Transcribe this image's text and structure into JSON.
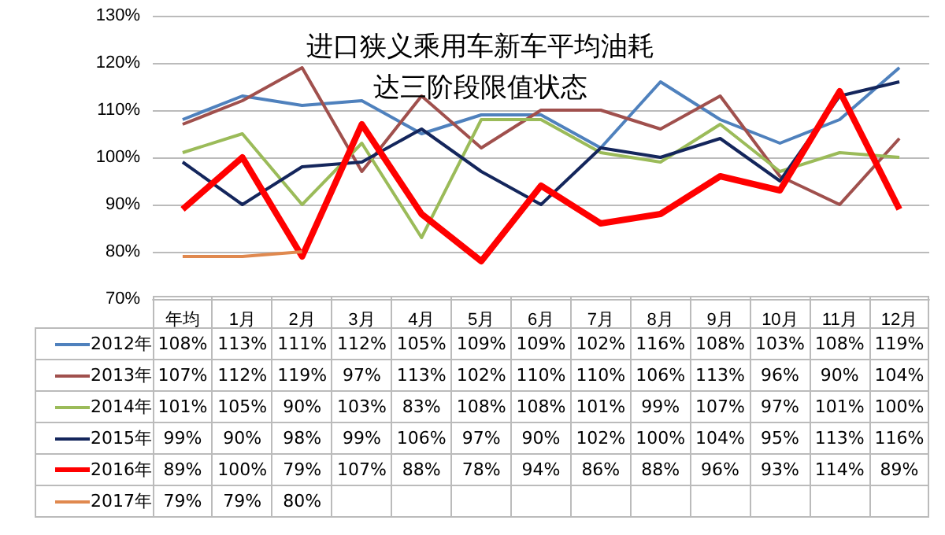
{
  "chart_data": {
    "type": "line",
    "title": "进口狭义乘用车新车平均油耗达三阶段限值状态",
    "categories": [
      "年均",
      "1月",
      "2月",
      "3月",
      "4月",
      "5月",
      "6月",
      "7月",
      "8月",
      "9月",
      "10月",
      "11月",
      "12月"
    ],
    "series": [
      {
        "name": "2012年",
        "color": "#4f81bd",
        "values": [
          108,
          113,
          111,
          112,
          105,
          109,
          109,
          102,
          116,
          108,
          103,
          108,
          119
        ],
        "value_labels": [
          "108%",
          "113%",
          "111%",
          "112%",
          "105%",
          "109%",
          "109%",
          "102%",
          "116%",
          "108%",
          "103%",
          "108%",
          "119%"
        ]
      },
      {
        "name": "2013年",
        "color": "#a0504d",
        "values": [
          107,
          112,
          119,
          97,
          113,
          102,
          110,
          110,
          106,
          113,
          96,
          90,
          104
        ],
        "value_labels": [
          "107%",
          "112%",
          "119%",
          "97%",
          "113%",
          "102%",
          "110%",
          "110%",
          "106%",
          "113%",
          "96%",
          "90%",
          "104%"
        ]
      },
      {
        "name": "2014年",
        "color": "#9bbb59",
        "values": [
          101,
          105,
          90,
          103,
          83,
          108,
          108,
          101,
          99,
          107,
          97,
          101,
          100
        ],
        "value_labels": [
          "101%",
          "105%",
          "90%",
          "103%",
          "83%",
          "108%",
          "108%",
          "101%",
          "99%",
          "107%",
          "97%",
          "101%",
          "100%"
        ]
      },
      {
        "name": "2015年",
        "color": "#14265c",
        "values": [
          99,
          90,
          98,
          99,
          106,
          97,
          90,
          102,
          100,
          104,
          95,
          113,
          116
        ],
        "value_labels": [
          "99%",
          "90%",
          "98%",
          "99%",
          "106%",
          "97%",
          "90%",
          "102%",
          "100%",
          "104%",
          "95%",
          "113%",
          "116%"
        ]
      },
      {
        "name": "2016年",
        "color": "#ff0000",
        "values": [
          89,
          100,
          79,
          107,
          88,
          78,
          94,
          86,
          88,
          96,
          93,
          114,
          89
        ],
        "value_labels": [
          "89%",
          "100%",
          "79%",
          "107%",
          "88%",
          "78%",
          "94%",
          "86%",
          "88%",
          "96%",
          "93%",
          "114%",
          "89%"
        ]
      },
      {
        "name": "2017年",
        "color": "#e0894f",
        "values": [
          79,
          79,
          80,
          null,
          null,
          null,
          null,
          null,
          null,
          null,
          null,
          null,
          null
        ],
        "value_labels": [
          "79%",
          "79%",
          "80%",
          null,
          null,
          null,
          null,
          null,
          null,
          null,
          null,
          null,
          null
        ]
      }
    ],
    "ylim": [
      70,
      130
    ],
    "yticks": [
      {
        "value": 70,
        "label": "70%"
      },
      {
        "value": 80,
        "label": "80%"
      },
      {
        "value": 90,
        "label": "90%"
      },
      {
        "value": 100,
        "label": "100%"
      },
      {
        "value": 110,
        "label": "110%"
      },
      {
        "value": 120,
        "label": "120%"
      },
      {
        "value": 130,
        "label": "130%"
      }
    ],
    "grid": "y",
    "legend": "bottom left",
    "marker": "none"
  }
}
